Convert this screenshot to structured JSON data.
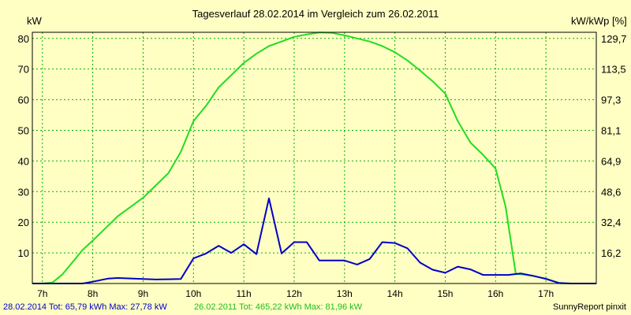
{
  "chart_data": {
    "type": "line",
    "title": "Tagesverlauf 28.02.2014 im Vergleich zum 26.02.2011",
    "ylabel_left": "kW",
    "ylabel_right": "kW/kWp [%]",
    "x_unit": "h",
    "xlim": [
      6.8,
      18.0
    ],
    "ylim": [
      0,
      82
    ],
    "x_ticks": [
      {
        "value": 7,
        "label": "7h"
      },
      {
        "value": 8,
        "label": "8h"
      },
      {
        "value": 9,
        "label": "9h"
      },
      {
        "value": 10,
        "label": "10h"
      },
      {
        "value": 11,
        "label": "11h"
      },
      {
        "value": 12,
        "label": "12h"
      },
      {
        "value": 13,
        "label": "13h"
      },
      {
        "value": 14,
        "label": "14h"
      },
      {
        "value": 15,
        "label": "15h"
      },
      {
        "value": 16,
        "label": "16h"
      },
      {
        "value": 17,
        "label": "17h"
      }
    ],
    "y_ticks_left": [
      {
        "value": 10,
        "label": "10"
      },
      {
        "value": 20,
        "label": "20"
      },
      {
        "value": 30,
        "label": "30"
      },
      {
        "value": 40,
        "label": "40"
      },
      {
        "value": 50,
        "label": "50"
      },
      {
        "value": 60,
        "label": "60"
      },
      {
        "value": 70,
        "label": "70"
      },
      {
        "value": 80,
        "label": "80"
      }
    ],
    "y_ticks_right": [
      {
        "value": 10,
        "label": "16,2"
      },
      {
        "value": 20,
        "label": "32,4"
      },
      {
        "value": 30,
        "label": "48,6"
      },
      {
        "value": 40,
        "label": "64,9"
      },
      {
        "value": 50,
        "label": "81,1"
      },
      {
        "value": 60,
        "label": "97,3"
      },
      {
        "value": 70,
        "label": "113,5"
      },
      {
        "value": 80,
        "label": "129,7"
      }
    ],
    "grid": true,
    "series": [
      {
        "name": "28.02.2014",
        "color": "#0000c8",
        "legend": "28.02.2014 Tot: 65,79 kWh Max: 27,78 kW",
        "points": [
          [
            6.8,
            0
          ],
          [
            7.2,
            0
          ],
          [
            7.5,
            0
          ],
          [
            7.8,
            0
          ],
          [
            8.0,
            0.6
          ],
          [
            8.3,
            1.6
          ],
          [
            8.5,
            1.8
          ],
          [
            8.8,
            1.6
          ],
          [
            9.0,
            1.5
          ],
          [
            9.25,
            1.3
          ],
          [
            9.5,
            1.4
          ],
          [
            9.75,
            1.5
          ],
          [
            10.0,
            8.2
          ],
          [
            10.25,
            9.8
          ],
          [
            10.5,
            12.3
          ],
          [
            10.75,
            10.0
          ],
          [
            11.0,
            12.8
          ],
          [
            11.25,
            9.6
          ],
          [
            11.5,
            27.8
          ],
          [
            11.75,
            9.8
          ],
          [
            12.0,
            13.5
          ],
          [
            12.25,
            13.5
          ],
          [
            12.5,
            7.5
          ],
          [
            12.75,
            7.5
          ],
          [
            13.0,
            7.5
          ],
          [
            13.25,
            6.2
          ],
          [
            13.5,
            8.0
          ],
          [
            13.75,
            13.5
          ],
          [
            14.0,
            13.2
          ],
          [
            14.25,
            11.5
          ],
          [
            14.5,
            6.8
          ],
          [
            14.75,
            4.5
          ],
          [
            15.0,
            3.5
          ],
          [
            15.25,
            5.5
          ],
          [
            15.5,
            4.6
          ],
          [
            15.75,
            2.8
          ],
          [
            16.0,
            2.8
          ],
          [
            16.25,
            2.8
          ],
          [
            16.5,
            3.3
          ],
          [
            16.75,
            2.5
          ],
          [
            17.0,
            1.5
          ],
          [
            17.25,
            0.2
          ],
          [
            17.5,
            0
          ],
          [
            18.0,
            0
          ]
        ]
      },
      {
        "name": "26.02.2011",
        "color": "#22dd22",
        "legend": "26.02.2011 Tot: 465,22 kWh Max: 81,96 kW",
        "points": [
          [
            6.8,
            0
          ],
          [
            7.0,
            0
          ],
          [
            7.2,
            0.3
          ],
          [
            7.4,
            3
          ],
          [
            7.6,
            7
          ],
          [
            7.8,
            11
          ],
          [
            8.0,
            14
          ],
          [
            8.5,
            22
          ],
          [
            9.0,
            28
          ],
          [
            9.5,
            36
          ],
          [
            9.75,
            43
          ],
          [
            10.0,
            53
          ],
          [
            10.25,
            58
          ],
          [
            10.5,
            64
          ],
          [
            10.75,
            68
          ],
          [
            11.0,
            72
          ],
          [
            11.25,
            75
          ],
          [
            11.5,
            77.5
          ],
          [
            11.75,
            79
          ],
          [
            12.0,
            80.5
          ],
          [
            12.25,
            81.3
          ],
          [
            12.5,
            81.96
          ],
          [
            12.75,
            81.8
          ],
          [
            13.0,
            81
          ],
          [
            13.25,
            80
          ],
          [
            13.5,
            79
          ],
          [
            13.75,
            77.5
          ],
          [
            14.0,
            75.5
          ],
          [
            14.25,
            72.8
          ],
          [
            14.5,
            69.5
          ],
          [
            14.75,
            66
          ],
          [
            15.0,
            62
          ],
          [
            15.25,
            53
          ],
          [
            15.5,
            46
          ],
          [
            15.75,
            42
          ],
          [
            16.0,
            37.5
          ],
          [
            16.2,
            25
          ],
          [
            16.4,
            3.2
          ],
          [
            16.7,
            2.6
          ],
          [
            17.0,
            1.6
          ],
          [
            17.2,
            0.5
          ],
          [
            17.3,
            0
          ],
          [
            18.0,
            0
          ]
        ]
      }
    ]
  },
  "footer": {
    "credit": "SunnyReport pinxit"
  }
}
